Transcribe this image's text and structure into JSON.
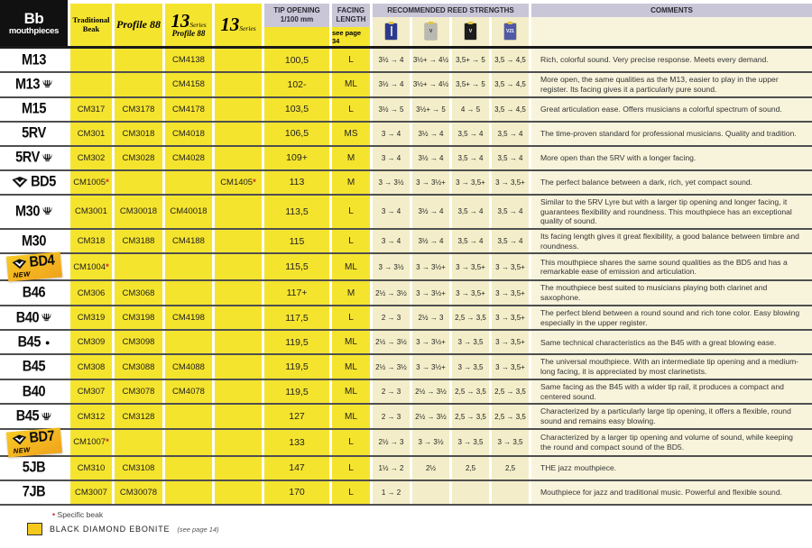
{
  "header": {
    "model_line1": "Bb",
    "model_line2": "mouthpieces",
    "traditional_beak": "Traditional Beak",
    "profile88": "Profile 88",
    "s13p88_num": "13",
    "s13p88_series": "Series",
    "s13p88_sub": "Profile 88",
    "s13_num": "13",
    "s13_series": "Series",
    "tip_line1": "TIP OPENING",
    "tip_line2": "1/100 mm",
    "facing_line1": "FACING",
    "facing_line2": "LENGTH",
    "facing_note": "see page 34",
    "reeds_title": "RECOMMENDED REED STRENGTHS",
    "comments_title": "COMMENTS",
    "reed_boxes": [
      {
        "icon": "traditional-reed-box-icon",
        "color": "#2b3a8f",
        "label": ""
      },
      {
        "icon": "v12-reed-box-icon",
        "color": "#b9b9b4",
        "label": "V"
      },
      {
        "icon": "rue-lepic-56-reed-box-icon",
        "color": "#1c1c1c",
        "label": "V"
      },
      {
        "icon": "v21-reed-box-icon",
        "color": "#5058a8",
        "label": "V21"
      }
    ]
  },
  "table": {
    "rows": [
      {
        "model": "M13",
        "lyre": false,
        "diamond": false,
        "badge_new": false,
        "dot": false,
        "codes": [
          "",
          "",
          "CM4138",
          ""
        ],
        "tip": "100,5",
        "facing": "L",
        "reeds": [
          "3½ → 4",
          "3½+ → 4½",
          "3,5+ → 5",
          "3,5 → 4,5"
        ],
        "comment": "Rich, colorful sound. Very precise response. Meets every demand."
      },
      {
        "model": "M13",
        "lyre": true,
        "diamond": false,
        "badge_new": false,
        "dot": false,
        "codes": [
          "",
          "",
          "CM4158",
          ""
        ],
        "tip": "102-",
        "facing": "ML",
        "reeds": [
          "3½ → 4",
          "3½+ → 4½",
          "3,5+ → 5",
          "3,5 → 4,5"
        ],
        "comment": "More open, the same qualities as the M13, easier to play in the upper register. Its facing gives it a particularly pure sound."
      },
      {
        "model": "M15",
        "lyre": false,
        "diamond": false,
        "badge_new": false,
        "dot": false,
        "codes": [
          "CM317",
          "CM3178",
          "CM4178",
          ""
        ],
        "tip": "103,5",
        "facing": "L",
        "reeds": [
          "3½ → 5",
          "3½+ → 5",
          "4 → 5",
          "3,5 → 4,5"
        ],
        "comment": "Great articulation ease. Offers musicians a colorful spectrum of sound."
      },
      {
        "model": "5RV",
        "lyre": false,
        "diamond": false,
        "badge_new": false,
        "dot": false,
        "codes": [
          "CM301",
          "CM3018",
          "CM4018",
          ""
        ],
        "tip": "106,5",
        "facing": "MS",
        "reeds": [
          "3 → 4",
          "3½ → 4",
          "3,5 → 4",
          "3,5 → 4"
        ],
        "comment": "The time-proven standard for professional musicians. Quality and tradition."
      },
      {
        "model": "5RV",
        "lyre": true,
        "diamond": false,
        "badge_new": false,
        "dot": false,
        "codes": [
          "CM302",
          "CM3028",
          "CM4028",
          ""
        ],
        "tip": "109+",
        "facing": "M",
        "reeds": [
          "3 → 4",
          "3½ → 4",
          "3,5 → 4",
          "3,5 → 4"
        ],
        "comment": "More open than the 5RV with a longer facing."
      },
      {
        "model": "BD5",
        "lyre": false,
        "diamond": true,
        "badge_new": false,
        "dot": false,
        "codes": [
          "CM1005*",
          "",
          "",
          "CM1405*"
        ],
        "tip": "113",
        "facing": "M",
        "reeds": [
          "3 → 3½",
          "3 → 3½+",
          "3 → 3,5+",
          "3 → 3,5+"
        ],
        "comment": "The perfect balance between a dark, rich, yet compact sound."
      },
      {
        "model": "M30",
        "lyre": true,
        "diamond": false,
        "badge_new": false,
        "dot": false,
        "codes": [
          "CM3001",
          "CM30018",
          "CM40018",
          ""
        ],
        "tip": "113,5",
        "facing": "L",
        "reeds": [
          "3 → 4",
          "3½ → 4",
          "3,5 → 4",
          "3,5 → 4"
        ],
        "comment": "Similar to the 5RV Lyre but with a larger tip opening and longer facing, it guarantees flexibility and roundness. This mouthpiece has an exceptional quality of sound."
      },
      {
        "model": "M30",
        "lyre": false,
        "diamond": false,
        "badge_new": false,
        "dot": false,
        "codes": [
          "CM318",
          "CM3188",
          "CM4188",
          ""
        ],
        "tip": "115",
        "facing": "L",
        "reeds": [
          "3 → 4",
          "3½ → 4",
          "3,5 → 4",
          "3,5 → 4"
        ],
        "comment": "Its facing length gives it great flexibility, a good balance between timbre and roundness."
      },
      {
        "model": "BD4",
        "lyre": false,
        "diamond": true,
        "badge_new": true,
        "dot": false,
        "codes": [
          "CM1004*",
          "",
          "",
          ""
        ],
        "tip": "115,5",
        "facing": "ML",
        "reeds": [
          "3 → 3½",
          "3 → 3½+",
          "3 → 3,5+",
          "3 → 3,5+"
        ],
        "comment": "This mouthpiece shares the same sound qualities as the BD5 and has a remarkable ease of emission and articulation."
      },
      {
        "model": "B46",
        "lyre": false,
        "diamond": false,
        "badge_new": false,
        "dot": false,
        "codes": [
          "CM306",
          "CM3068",
          "",
          ""
        ],
        "tip": "117+",
        "facing": "M",
        "reeds": [
          "2½ → 3½",
          "3 → 3½+",
          "3 → 3,5+",
          "3 → 3,5+"
        ],
        "comment": "The mouthpiece best suited to musicians playing both clarinet and saxophone."
      },
      {
        "model": "B40",
        "lyre": true,
        "diamond": false,
        "badge_new": false,
        "dot": false,
        "codes": [
          "CM319",
          "CM3198",
          "CM4198",
          ""
        ],
        "tip": "117,5",
        "facing": "L",
        "reeds": [
          "2 → 3",
          "2½ → 3",
          "2,5 → 3,5",
          "3 → 3,5+"
        ],
        "comment": "The perfect blend between a round sound and rich tone color. Easy blowing especially in the upper register."
      },
      {
        "model": "B45",
        "lyre": false,
        "diamond": false,
        "badge_new": false,
        "dot": true,
        "codes": [
          "CM309",
          "CM3098",
          "",
          ""
        ],
        "tip": "119,5",
        "facing": "ML",
        "reeds": [
          "2½ → 3½",
          "3 → 3½+",
          "3 → 3,5",
          "3 → 3,5+"
        ],
        "comment": "Same technical characteristics as the B45 with a great blowing ease."
      },
      {
        "model": "B45",
        "lyre": false,
        "diamond": false,
        "badge_new": false,
        "dot": false,
        "codes": [
          "CM308",
          "CM3088",
          "CM4088",
          ""
        ],
        "tip": "119,5",
        "facing": "ML",
        "reeds": [
          "2½ → 3½",
          "3 → 3½+",
          "3 → 3,5",
          "3 → 3,5+"
        ],
        "comment": "The universal mouthpiece. With an intermediate tip opening and a medium-long facing, it is appreciated by most clarinetists."
      },
      {
        "model": "B40",
        "lyre": false,
        "diamond": false,
        "badge_new": false,
        "dot": false,
        "codes": [
          "CM307",
          "CM3078",
          "CM4078",
          ""
        ],
        "tip": "119,5",
        "facing": "ML",
        "reeds": [
          "2 → 3",
          "2½ → 3½",
          "2,5 → 3,5",
          "2,5 → 3,5"
        ],
        "comment": "Same facing as the B45 with a wider tip rail, it produces a compact and centered sound."
      },
      {
        "model": "B45",
        "lyre": true,
        "diamond": false,
        "badge_new": false,
        "dot": false,
        "codes": [
          "CM312",
          "CM3128",
          "",
          ""
        ],
        "tip": "127",
        "facing": "ML",
        "reeds": [
          "2 → 3",
          "2½ → 3½",
          "2,5 → 3,5",
          "2,5 → 3,5"
        ],
        "comment": "Characterized by a particularly large tip opening, it offers a flexible, round sound and remains easy blowing."
      },
      {
        "model": "BD7",
        "lyre": false,
        "diamond": true,
        "badge_new": true,
        "dot": false,
        "codes": [
          "CM1007*",
          "",
          "",
          ""
        ],
        "tip": "133",
        "facing": "L",
        "reeds": [
          "2½ → 3",
          "3 → 3½",
          "3 → 3,5",
          "3 → 3,5"
        ],
        "comment": "Characterized by a larger tip opening and volume of sound, while keeping the round and compact sound of the BD5."
      },
      {
        "model": "5JB",
        "lyre": false,
        "diamond": false,
        "badge_new": false,
        "dot": false,
        "codes": [
          "CM310",
          "CM3108",
          "",
          ""
        ],
        "tip": "147",
        "facing": "L",
        "reeds": [
          "1½ → 2",
          "2½",
          "2,5",
          "2,5"
        ],
        "comment": "THE jazz mouthpiece."
      },
      {
        "model": "7JB",
        "lyre": false,
        "diamond": false,
        "badge_new": false,
        "dot": false,
        "codes": [
          "CM3007",
          "CM30078",
          "",
          ""
        ],
        "tip": "170",
        "facing": "L",
        "reeds": [
          "1 → 2",
          "",
          "",
          ""
        ],
        "comment": "Mouthpiece for jazz and traditional music. Powerful and flexible sound."
      }
    ]
  },
  "footer": {
    "specific_beak": "Specific beak",
    "ebonite": "BLACK DIAMOND EBONITE",
    "ebonite_note": "(see page 14)",
    "badge_new_label": "NEW"
  },
  "colors": {
    "yellow": "#f5e42e",
    "pale_yellow": "#f3eec9",
    "cream": "#f8f4dc",
    "lavender": "#c9c6d8",
    "badge_orange": "#f0a31c",
    "red_asterisk": "#d1232a"
  }
}
